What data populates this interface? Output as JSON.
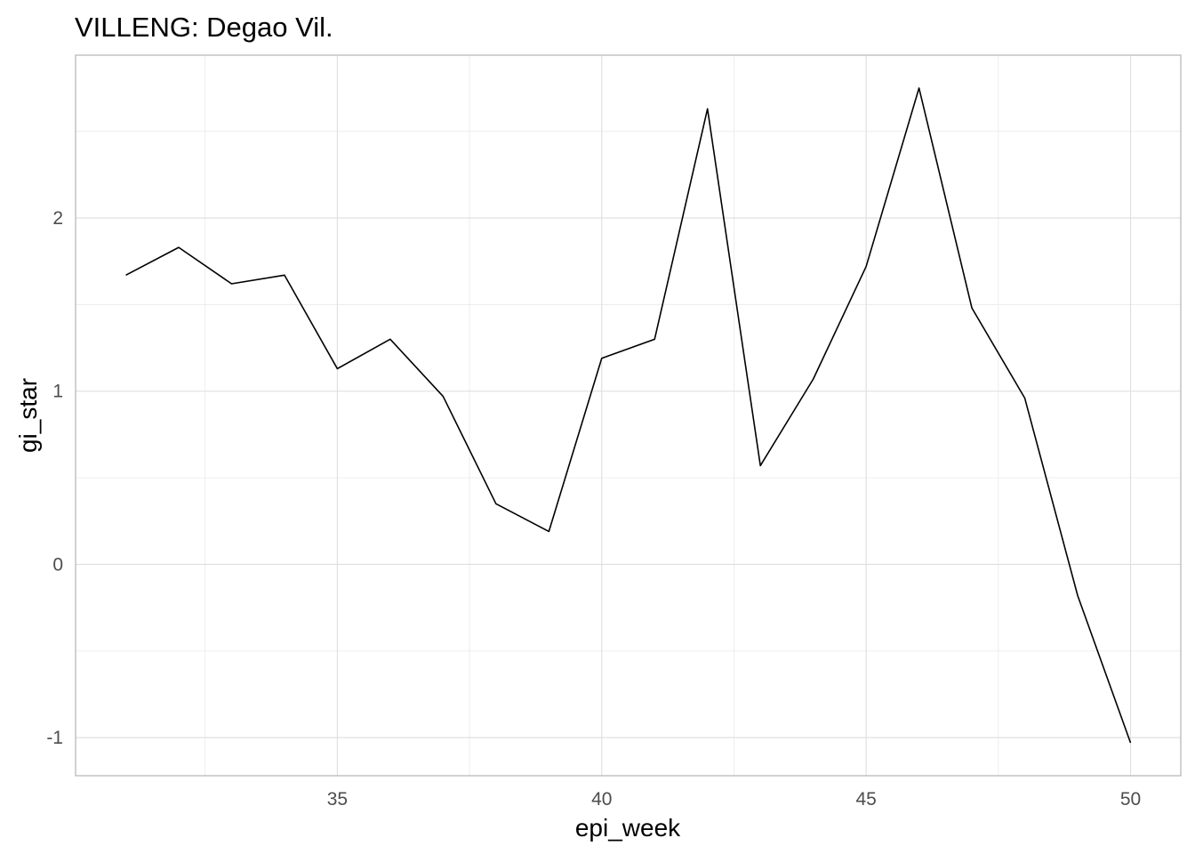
{
  "chart_data": {
    "type": "line",
    "title": "VILLENG: Degao Vil.",
    "xlabel": "epi_week",
    "ylabel": "gi_star",
    "x": [
      31,
      32,
      33,
      34,
      35,
      36,
      37,
      38,
      39,
      40,
      41,
      42,
      43,
      44,
      45,
      46,
      47,
      48,
      49,
      50
    ],
    "series": [
      {
        "values": [
          1.67,
          1.83,
          1.62,
          1.67,
          1.13,
          1.3,
          0.97,
          0.35,
          0.19,
          1.19,
          1.3,
          2.63,
          0.57,
          1.07,
          1.72,
          2.75,
          1.48,
          0.96,
          -0.18,
          -1.03
        ]
      }
    ],
    "xlim": [
      30.05,
      50.95
    ],
    "ylim": [
      -1.22,
      2.94
    ],
    "x_ticks": [
      35,
      40,
      45,
      50
    ],
    "y_ticks": [
      -1,
      0,
      1,
      2
    ],
    "x_tick_labels": [
      "35",
      "40",
      "45",
      "50"
    ],
    "y_tick_labels": [
      "-1",
      "0",
      "1",
      "2"
    ],
    "grid": true,
    "line_color": "#000000"
  }
}
